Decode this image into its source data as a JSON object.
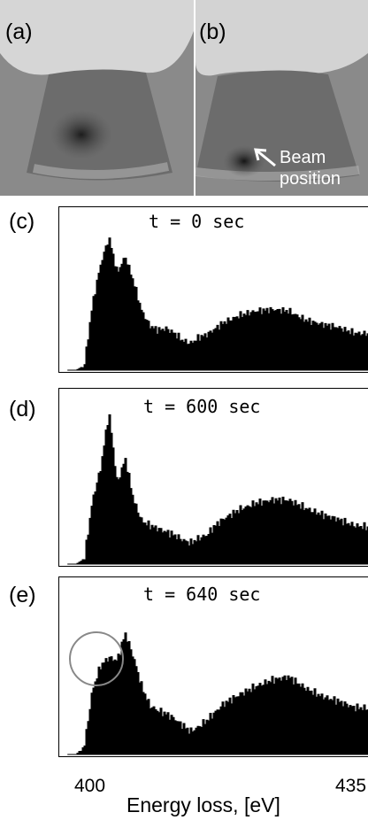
{
  "panels": {
    "a": {
      "label": "(a)"
    },
    "b": {
      "label": "(b)",
      "annotation_line1": "Beam",
      "annotation_line2": "position"
    },
    "c": {
      "label": "(c)",
      "time": "t = 0 sec"
    },
    "d": {
      "label": "(d)",
      "time": "t = 600 sec"
    },
    "e": {
      "label": "(e)",
      "time": "t = 640 sec"
    }
  },
  "axis": {
    "xlabel": "Energy loss, [eV]",
    "tick_400": "400",
    "tick_435": "435"
  },
  "colors": {
    "spectrum_fill": "#000000",
    "circle": "#888888",
    "image_gray": "#8a8a8a"
  },
  "chart_data": [
    {
      "type": "area",
      "title": "t = 0 sec",
      "xlabel": "Energy loss, [eV]",
      "xlim": [
        396,
        435
      ],
      "x": [
        397,
        398,
        399,
        400,
        401,
        402,
        403,
        404,
        405,
        406,
        407,
        408,
        409,
        410,
        411,
        412,
        413,
        414,
        415,
        416,
        418,
        420,
        422,
        424,
        426,
        428,
        430,
        432,
        435
      ],
      "values": [
        0,
        0,
        3,
        45,
        72,
        90,
        66,
        77,
        60,
        40,
        30,
        27,
        28,
        25,
        20,
        18,
        22,
        24,
        28,
        32,
        37,
        40,
        41,
        40,
        34,
        31,
        29,
        25,
        24
      ]
    },
    {
      "type": "area",
      "title": "t = 600 sec",
      "xlabel": "Energy loss, [eV]",
      "xlim": [
        396,
        435
      ],
      "x": [
        397,
        398,
        399,
        400,
        401,
        402,
        403,
        404,
        405,
        406,
        407,
        408,
        409,
        410,
        411,
        412,
        413,
        414,
        415,
        416,
        418,
        420,
        422,
        424,
        426,
        428,
        430,
        432,
        435
      ],
      "values": [
        0,
        0,
        3,
        40,
        60,
        95,
        50,
        66,
        40,
        27,
        24,
        22,
        20,
        18,
        15,
        13,
        16,
        18,
        24,
        28,
        34,
        38,
        40,
        40,
        35,
        31,
        28,
        24,
        22
      ]
    },
    {
      "type": "area",
      "title": "t = 640 sec",
      "xlabel": "Energy loss, [eV]",
      "xlim": [
        396,
        435
      ],
      "x": [
        397,
        398,
        399,
        400,
        401,
        402,
        403,
        404,
        405,
        406,
        407,
        408,
        409,
        410,
        411,
        412,
        413,
        414,
        415,
        416,
        418,
        420,
        422,
        424,
        426,
        428,
        430,
        432,
        435
      ],
      "values": [
        0,
        0,
        5,
        40,
        55,
        60,
        58,
        75,
        60,
        42,
        30,
        27,
        25,
        22,
        18,
        14,
        17,
        21,
        26,
        31,
        37,
        42,
        46,
        48,
        41,
        36,
        33,
        29,
        28
      ]
    }
  ]
}
